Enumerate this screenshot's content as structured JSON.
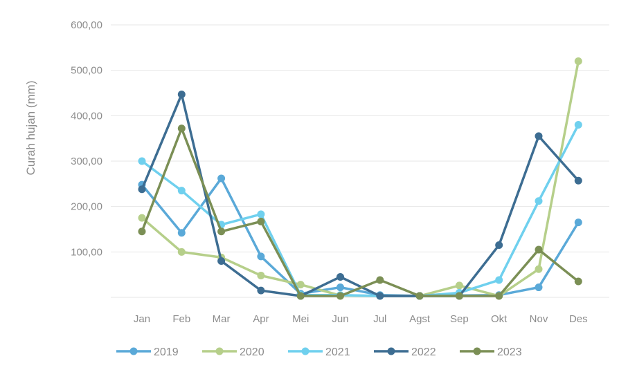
{
  "chart_data": {
    "type": "line",
    "ylabel": "Curah hujan (mm)",
    "ylim": [
      0,
      600
    ],
    "yticks": [
      "",
      "100,00",
      "200,00",
      "300,00",
      "400,00",
      "500,00",
      "600,00"
    ],
    "categories": [
      "Jan",
      "Feb",
      "Mar",
      "Apr",
      "Mei",
      "Jun",
      "Jul",
      "Agst",
      "Sep",
      "Okt",
      "Nov",
      "Des"
    ],
    "grid": true,
    "legend_position": "bottom",
    "series": [
      {
        "name": "2019",
        "color": "#5aa9d8",
        "values": [
          248,
          142,
          262,
          90,
          8,
          22,
          5,
          3,
          4,
          5,
          22,
          165
        ]
      },
      {
        "name": "2020",
        "color": "#b6cf8a",
        "values": [
          175,
          100,
          88,
          48,
          28,
          4,
          3,
          3,
          26,
          3,
          62,
          520
        ]
      },
      {
        "name": "2021",
        "color": "#6fd0ee",
        "values": [
          300,
          235,
          160,
          183,
          5,
          5,
          3,
          3,
          10,
          38,
          212,
          380
        ]
      },
      {
        "name": "2022",
        "color": "#3d6d92",
        "values": [
          238,
          447,
          80,
          15,
          3,
          45,
          3,
          3,
          3,
          115,
          355,
          257
        ]
      },
      {
        "name": "2023",
        "color": "#7b8f55",
        "values": [
          145,
          372,
          145,
          167,
          3,
          3,
          38,
          3,
          3,
          3,
          105,
          35
        ]
      }
    ]
  }
}
